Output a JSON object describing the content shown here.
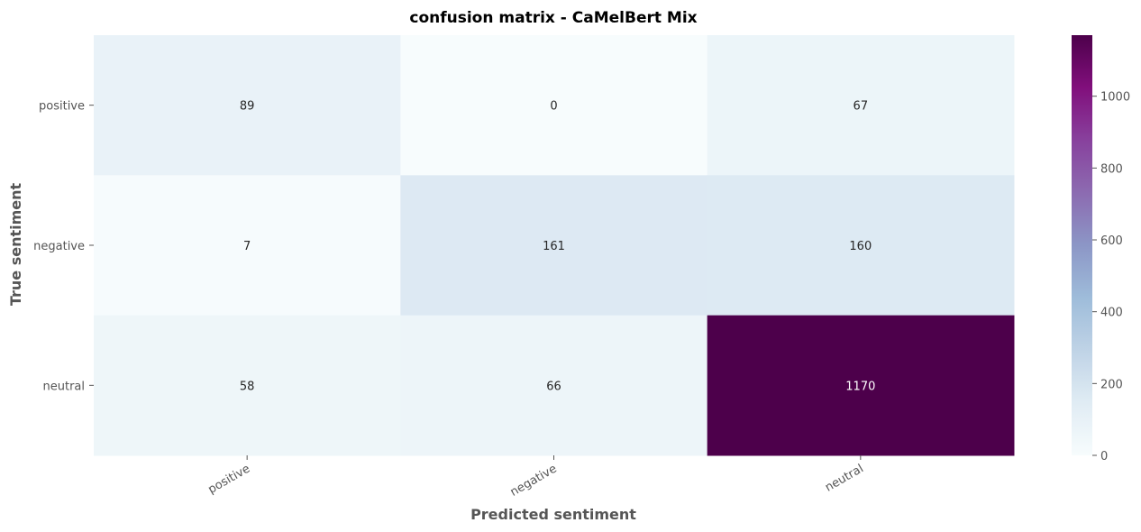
{
  "chart_data": {
    "type": "heatmap",
    "title": "confusion matrix - CaMelBert Mix",
    "xlabel": "Predicted sentiment",
    "ylabel": "True sentiment",
    "x_categories": [
      "positive",
      "negative",
      "neutral"
    ],
    "y_categories": [
      "positive",
      "negative",
      "neutral"
    ],
    "values": [
      [
        89,
        0,
        67
      ],
      [
        7,
        161,
        160
      ],
      [
        58,
        66,
        1170
      ]
    ],
    "colormap": "BuPu",
    "colormap_stops": [
      "#f7fcfd",
      "#e0ecf4",
      "#bfd3e6",
      "#9ebcda",
      "#8c96c6",
      "#8c6bb1",
      "#88419d",
      "#810f7c",
      "#4d004b"
    ],
    "vmin": 0,
    "vmax": 1170,
    "colorbar_ticks": [
      0,
      200,
      400,
      600,
      800,
      1000
    ]
  }
}
